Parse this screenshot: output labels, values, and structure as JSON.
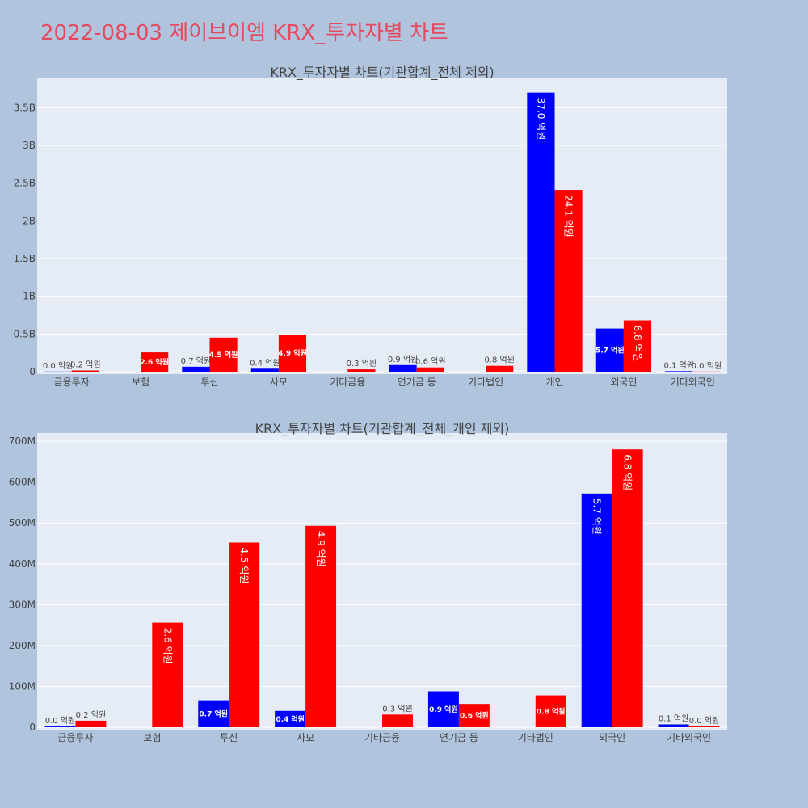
{
  "title": "2022-08-03 제이브이엠 KRX_투자자별 차트",
  "colors": {
    "buy": "#0000ff",
    "sell": "#ff0000",
    "title": "#e8485e"
  },
  "chart_data": [
    {
      "type": "bar",
      "title": "KRX_투자자별 차트(기관합계_전체 제외)",
      "categories": [
        "금융투자",
        "보험",
        "투신",
        "사모",
        "기타금융",
        "연기금 등",
        "기타법인",
        "개인",
        "외국인",
        "기타외국인"
      ],
      "ylim": [
        0,
        3900000000
      ],
      "yticks": [
        0,
        500000000,
        1000000000,
        1500000000,
        2000000000,
        2500000000,
        3000000000,
        3500000000
      ],
      "ytick_labels": [
        "0",
        "0.5B",
        "1B",
        "1.5B",
        "2B",
        "2.5B",
        "3B",
        "3.5B"
      ],
      "grid": true,
      "series": [
        {
          "color": "#0000ff",
          "values": [
            2000000,
            0,
            66000000,
            40000000,
            0,
            88000000,
            0,
            3700000000,
            572000000,
            7000000
          ],
          "labels": [
            "0.0 억원",
            "",
            "0.7 억원",
            "0.4 억원",
            "",
            "0.9 억원",
            "",
            "37.0 억원",
            "5.7 억원",
            "0.1 억원"
          ]
        },
        {
          "color": "#ff0000",
          "values": [
            16000000,
            256000000,
            452000000,
            493000000,
            31000000,
            57000000,
            78000000,
            2410000000,
            680000000,
            2000000
          ],
          "labels": [
            "0.2 억원",
            "2.6 억원",
            "4.5 억원",
            "4.9 억원",
            "0.3 억원",
            "0.6 억원",
            "0.8 억원",
            "24.1 억원",
            "6.8 억원",
            "0.0 억원"
          ]
        }
      ]
    },
    {
      "type": "bar",
      "title": "KRX_투자자별 차트(기관합계_전체_개인 제외)",
      "categories": [
        "금융투자",
        "보험",
        "투신",
        "사모",
        "기타금융",
        "연기금 등",
        "기타법인",
        "외국인",
        "기타외국인"
      ],
      "ylim": [
        0,
        720000000
      ],
      "yticks": [
        0,
        100000000,
        200000000,
        300000000,
        400000000,
        500000000,
        600000000,
        700000000
      ],
      "ytick_labels": [
        "0",
        "100M",
        "200M",
        "300M",
        "400M",
        "500M",
        "600M",
        "700M"
      ],
      "grid": true,
      "series": [
        {
          "color": "#0000ff",
          "values": [
            2000000,
            0,
            66000000,
            40000000,
            0,
            88000000,
            0,
            572000000,
            7000000
          ],
          "labels": [
            "0.0 억원",
            "",
            "0.7 억원",
            "0.4 억원",
            "",
            "0.9 억원",
            "",
            "5.7 억원",
            "0.1 억원"
          ]
        },
        {
          "color": "#ff0000",
          "values": [
            16000000,
            256000000,
            452000000,
            493000000,
            31000000,
            57000000,
            78000000,
            680000000,
            2000000
          ],
          "labels": [
            "0.2 억원",
            "2.6 억원",
            "4.5 억원",
            "4.9 억원",
            "0.3 억원",
            "0.6 억원",
            "0.8 억원",
            "6.8 억원",
            "0.0 억원"
          ]
        }
      ]
    }
  ]
}
